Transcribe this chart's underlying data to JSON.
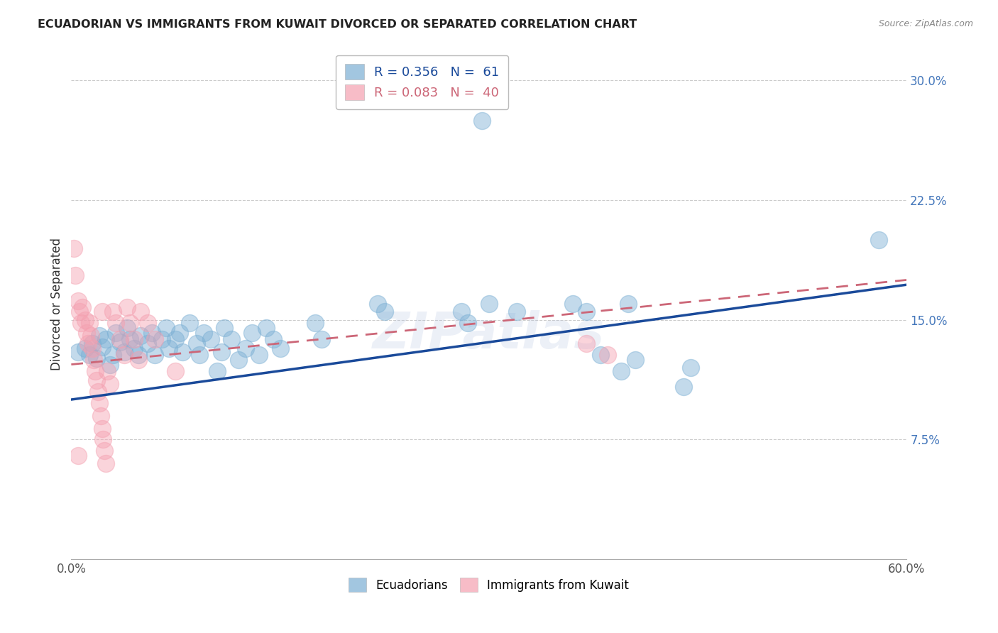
{
  "title": "ECUADORIAN VS IMMIGRANTS FROM KUWAIT DIVORCED OR SEPARATED CORRELATION CHART",
  "source": "Source: ZipAtlas.com",
  "ylabel": "Divorced or Separated",
  "xlim": [
    0.0,
    0.6
  ],
  "ylim": [
    0.0,
    0.32
  ],
  "yticks_right": [
    0.075,
    0.15,
    0.225,
    0.3
  ],
  "ytick_right_labels": [
    "7.5%",
    "15.0%",
    "22.5%",
    "30.0%"
  ],
  "watermark": "ZIPatlas",
  "legend_blue_r": "R = 0.356",
  "legend_blue_n": "N =  61",
  "legend_pink_r": "R = 0.083",
  "legend_pink_n": "N =  40",
  "blue_color": "#7BAFD4",
  "pink_color": "#F4A0B0",
  "trendline_blue": "#1A4A9A",
  "trendline_pink": "#CC6677",
  "blue_scatter": [
    [
      0.005,
      0.13
    ],
    [
      0.01,
      0.132
    ],
    [
      0.013,
      0.128
    ],
    [
      0.015,
      0.135
    ],
    [
      0.018,
      0.126
    ],
    [
      0.02,
      0.14
    ],
    [
      0.022,
      0.133
    ],
    [
      0.025,
      0.138
    ],
    [
      0.028,
      0.122
    ],
    [
      0.03,
      0.128
    ],
    [
      0.032,
      0.142
    ],
    [
      0.035,
      0.136
    ],
    [
      0.038,
      0.13
    ],
    [
      0.04,
      0.145
    ],
    [
      0.042,
      0.138
    ],
    [
      0.045,
      0.132
    ],
    [
      0.048,
      0.128
    ],
    [
      0.05,
      0.14
    ],
    [
      0.055,
      0.135
    ],
    [
      0.058,
      0.142
    ],
    [
      0.06,
      0.128
    ],
    [
      0.065,
      0.138
    ],
    [
      0.068,
      0.145
    ],
    [
      0.07,
      0.132
    ],
    [
      0.075,
      0.138
    ],
    [
      0.078,
      0.142
    ],
    [
      0.08,
      0.13
    ],
    [
      0.085,
      0.148
    ],
    [
      0.09,
      0.135
    ],
    [
      0.092,
      0.128
    ],
    [
      0.095,
      0.142
    ],
    [
      0.1,
      0.138
    ],
    [
      0.105,
      0.118
    ],
    [
      0.108,
      0.13
    ],
    [
      0.11,
      0.145
    ],
    [
      0.115,
      0.138
    ],
    [
      0.12,
      0.125
    ],
    [
      0.125,
      0.132
    ],
    [
      0.13,
      0.142
    ],
    [
      0.135,
      0.128
    ],
    [
      0.14,
      0.145
    ],
    [
      0.145,
      0.138
    ],
    [
      0.15,
      0.132
    ],
    [
      0.175,
      0.148
    ],
    [
      0.18,
      0.138
    ],
    [
      0.22,
      0.16
    ],
    [
      0.225,
      0.155
    ],
    [
      0.28,
      0.155
    ],
    [
      0.285,
      0.148
    ],
    [
      0.3,
      0.16
    ],
    [
      0.32,
      0.155
    ],
    [
      0.36,
      0.16
    ],
    [
      0.37,
      0.155
    ],
    [
      0.38,
      0.128
    ],
    [
      0.395,
      0.118
    ],
    [
      0.4,
      0.16
    ],
    [
      0.405,
      0.125
    ],
    [
      0.44,
      0.108
    ],
    [
      0.445,
      0.12
    ],
    [
      0.58,
      0.2
    ],
    [
      0.295,
      0.275
    ]
  ],
  "pink_scatter": [
    [
      0.002,
      0.195
    ],
    [
      0.003,
      0.178
    ],
    [
      0.005,
      0.162
    ],
    [
      0.006,
      0.155
    ],
    [
      0.007,
      0.148
    ],
    [
      0.008,
      0.158
    ],
    [
      0.01,
      0.15
    ],
    [
      0.011,
      0.142
    ],
    [
      0.012,
      0.135
    ],
    [
      0.013,
      0.148
    ],
    [
      0.014,
      0.14
    ],
    [
      0.015,
      0.132
    ],
    [
      0.016,
      0.125
    ],
    [
      0.017,
      0.118
    ],
    [
      0.018,
      0.112
    ],
    [
      0.019,
      0.105
    ],
    [
      0.02,
      0.098
    ],
    [
      0.021,
      0.09
    ],
    [
      0.022,
      0.082
    ],
    [
      0.023,
      0.075
    ],
    [
      0.024,
      0.068
    ],
    [
      0.025,
      0.06
    ],
    [
      0.026,
      0.118
    ],
    [
      0.028,
      0.11
    ],
    [
      0.03,
      0.155
    ],
    [
      0.032,
      0.148
    ],
    [
      0.035,
      0.138
    ],
    [
      0.038,
      0.128
    ],
    [
      0.04,
      0.158
    ],
    [
      0.042,
      0.148
    ],
    [
      0.045,
      0.138
    ],
    [
      0.048,
      0.125
    ],
    [
      0.05,
      0.155
    ],
    [
      0.055,
      0.148
    ],
    [
      0.06,
      0.138
    ],
    [
      0.075,
      0.118
    ],
    [
      0.37,
      0.135
    ],
    [
      0.385,
      0.128
    ],
    [
      0.005,
      0.065
    ],
    [
      0.022,
      0.155
    ]
  ]
}
